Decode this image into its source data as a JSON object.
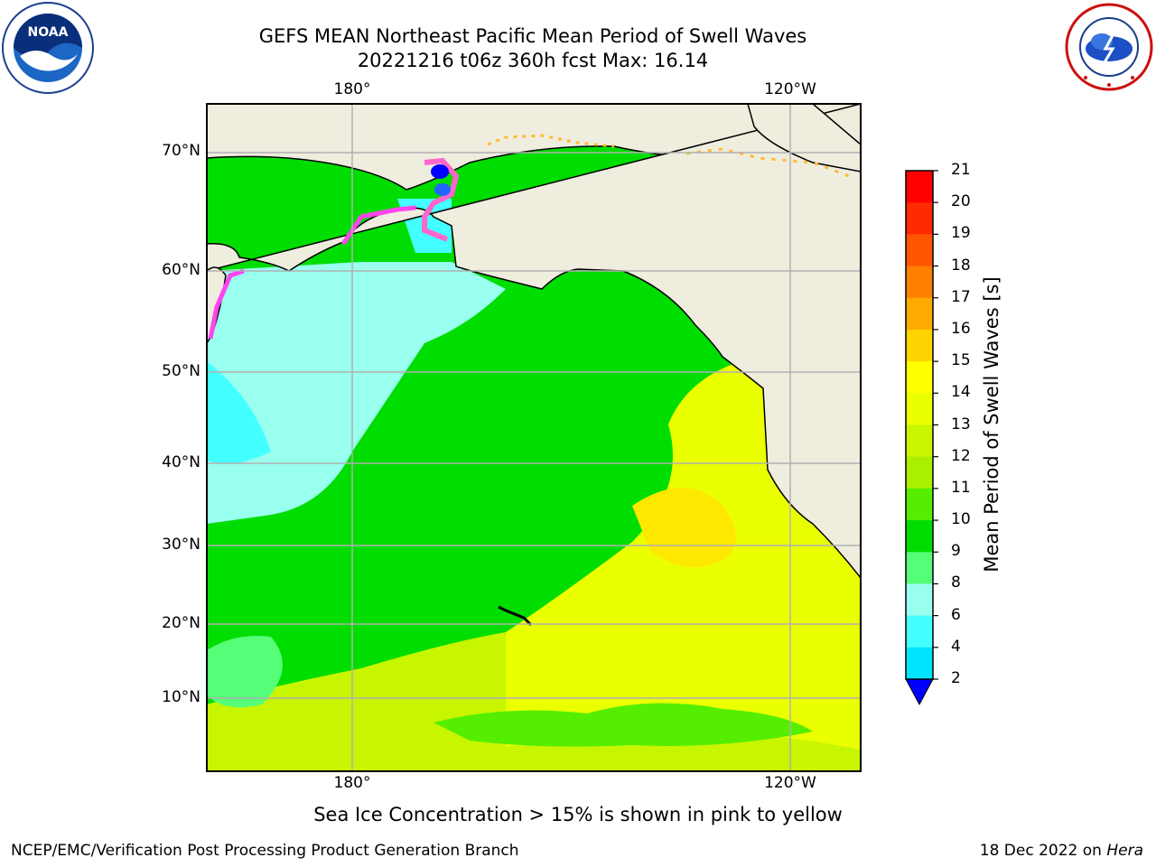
{
  "title_line1": "GEFS MEAN Northeast Pacific Mean Period of Swell Waves",
  "title_line2": "20221216 t06z 360h fcst   Max: 16.14",
  "map": {
    "lon_labels_top": [
      "180°",
      "120°W"
    ],
    "lon_labels_bottom": [
      "180°",
      "120°W"
    ],
    "lat_labels": [
      "70°N",
      "60°N",
      "50°N",
      "40°N",
      "30°N",
      "20°N",
      "10°N"
    ],
    "land_color": "#efedde",
    "gridline_color": "#b0b0b0"
  },
  "colorbar": {
    "title": "Mean Period of Swell Waves [s]",
    "tick_labels": [
      "21",
      "20",
      "19",
      "18",
      "17",
      "16",
      "15",
      "14",
      "13",
      "12",
      "11",
      "10",
      "9",
      "8",
      "6",
      "4",
      "2"
    ],
    "colors": [
      "#ff0000",
      "#ff2a00",
      "#ff5500",
      "#ff7f00",
      "#ffaa00",
      "#ffd400",
      "#ffff00",
      "#eaff00",
      "#c8f500",
      "#aaee00",
      "#55ee00",
      "#00dd00",
      "#55ff77",
      "#99ffee",
      "#44ffff",
      "#00e5ff",
      "#0099ff",
      "#0066ff"
    ],
    "extend_color": "#0000ff"
  },
  "note": "Sea Ice Concentration > 15% is shown in pink to yellow",
  "footer_left": "NCEP/EMC/Verification Post Processing Product Generation Branch",
  "footer_right_prefix": "18 Dec 2022 on ",
  "footer_right_host": "Hera",
  "logos": {
    "left": "noaa-logo",
    "right": "nws-logo"
  }
}
